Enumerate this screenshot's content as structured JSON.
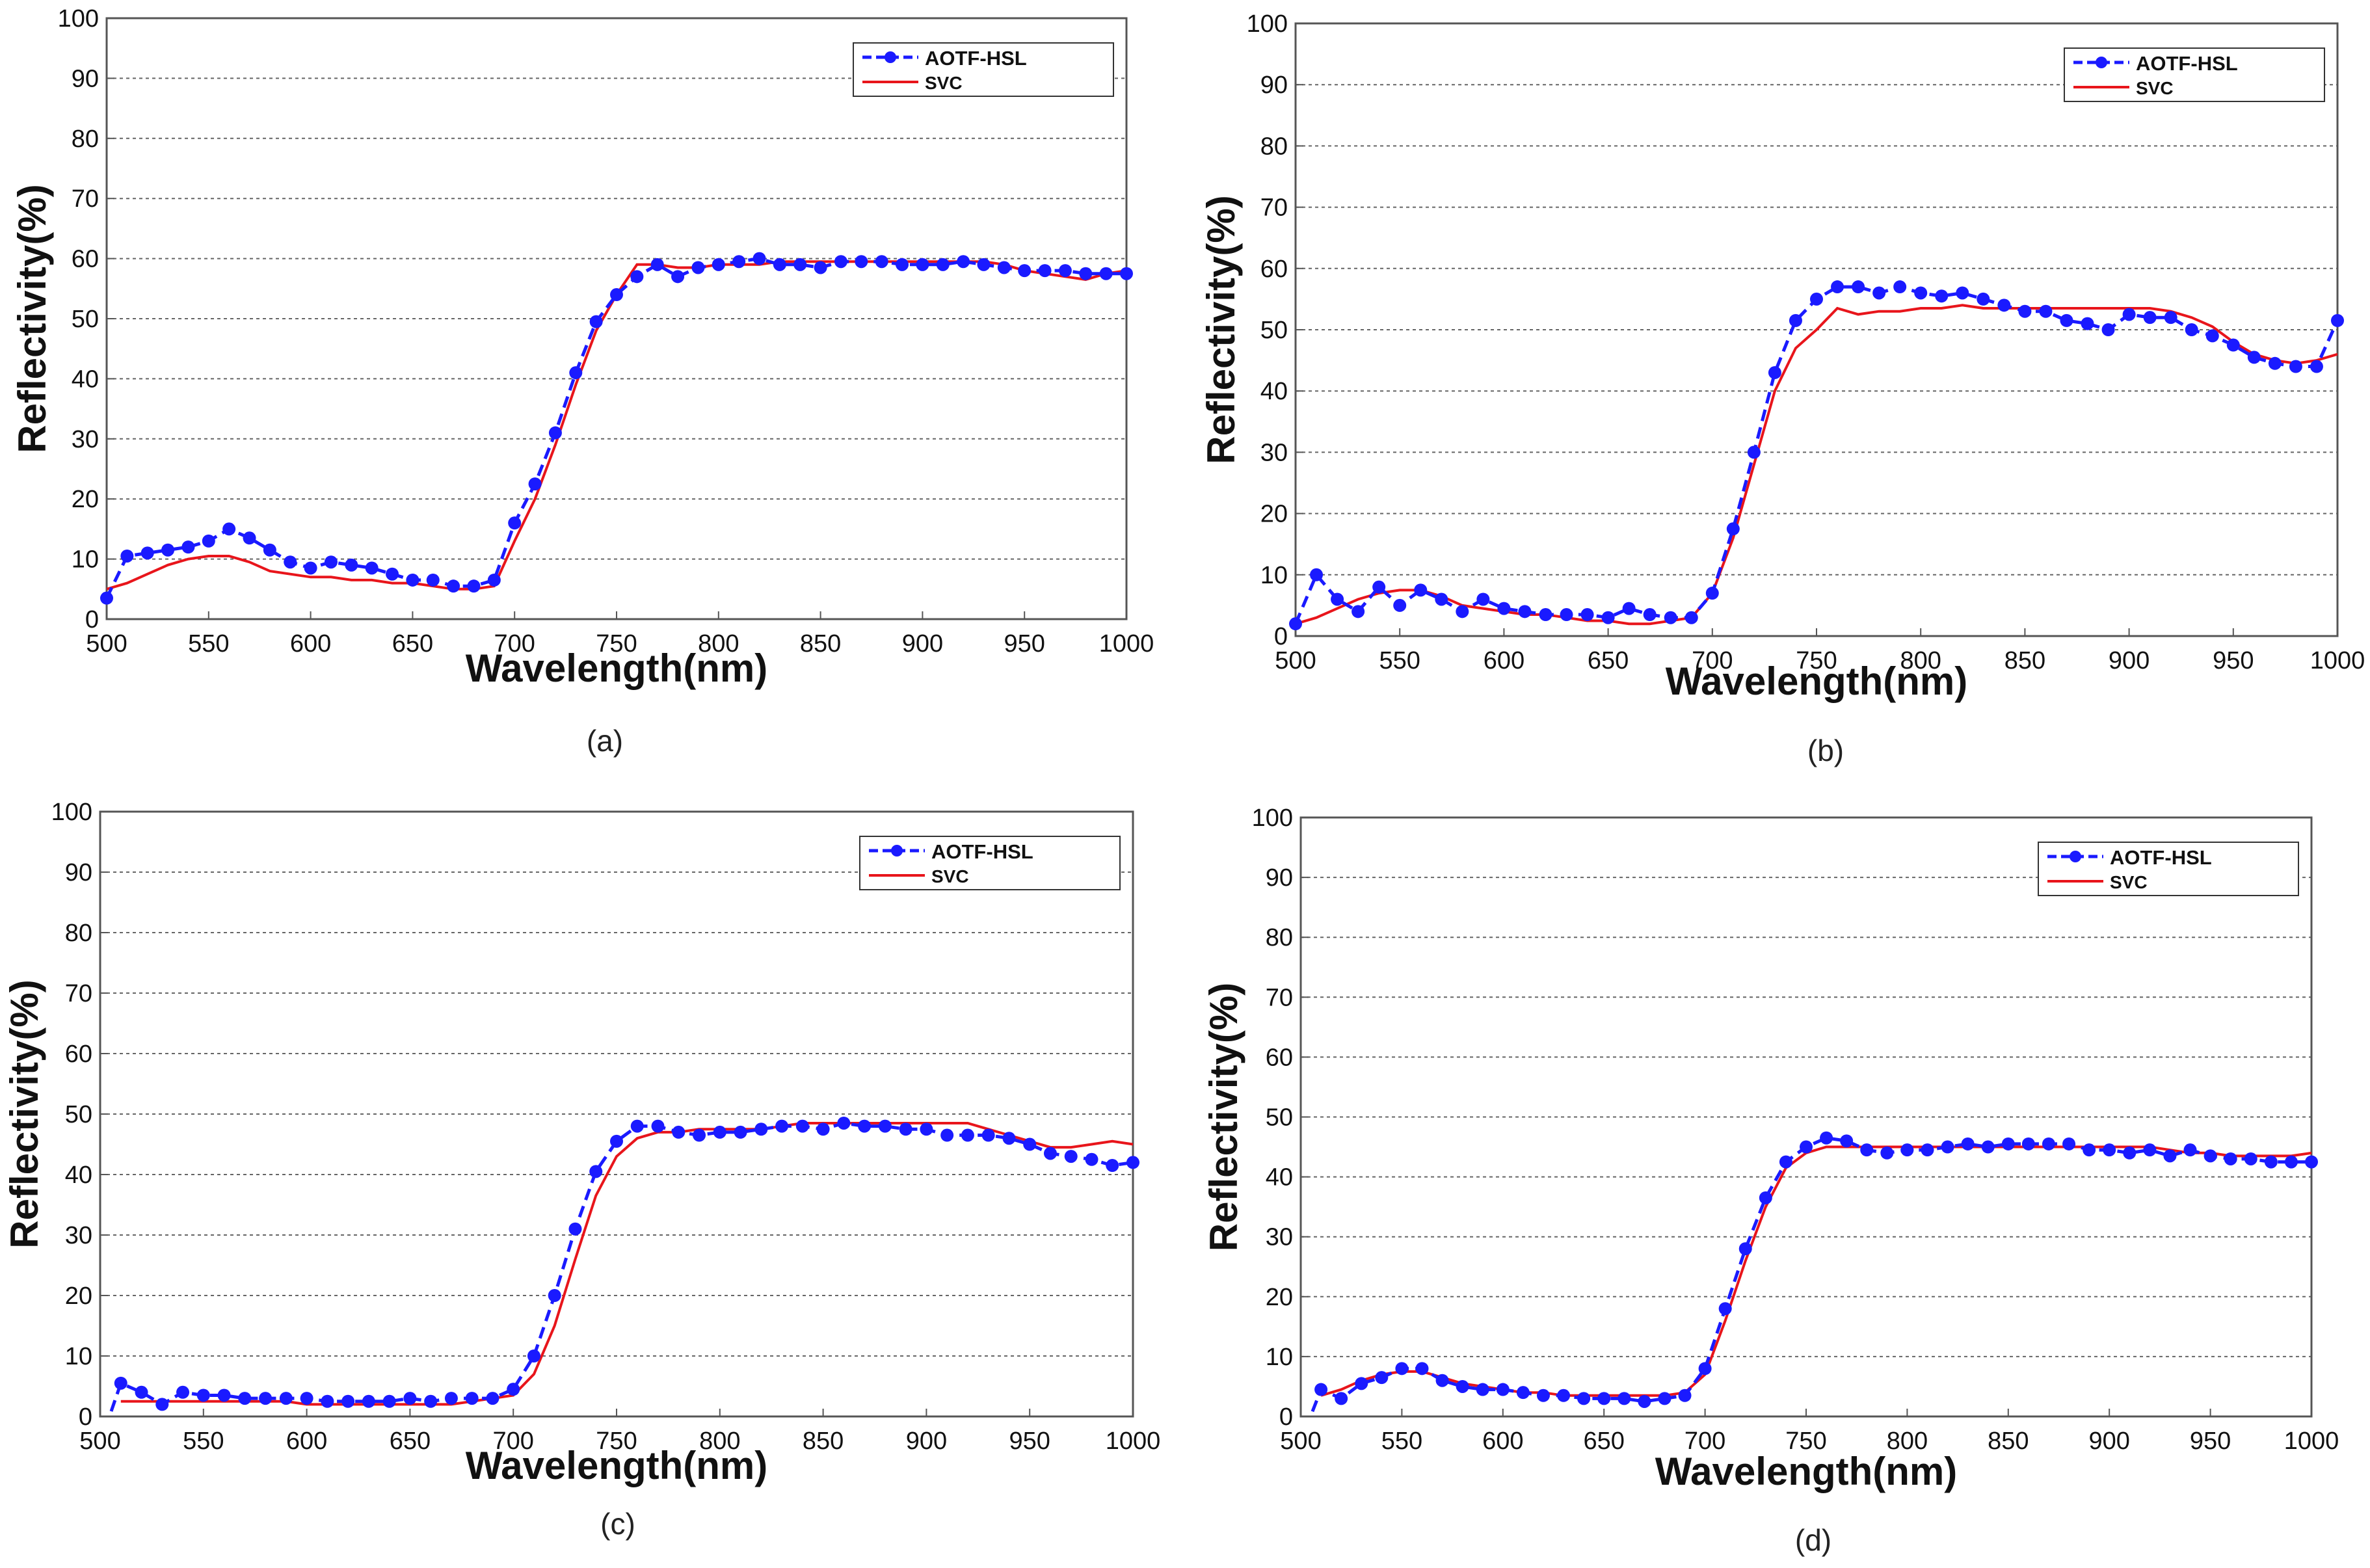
{
  "figure": {
    "legend_labels": [
      "AOTF-HSL",
      "SVC"
    ],
    "colors": {
      "aotf": "#1a1aff",
      "svc": "#e8151b",
      "grid": "#666666",
      "axis": "#555555"
    }
  },
  "chart_data": [
    {
      "type": "line",
      "caption": "(a)",
      "xlabel": "Wavelength(nm)",
      "ylabel": "Reflectivity(%)",
      "xlim": [
        500,
        1000
      ],
      "ylim": [
        0,
        100
      ],
      "xticks": [
        500,
        550,
        600,
        650,
        700,
        750,
        800,
        850,
        900,
        950,
        1000
      ],
      "yticks": [
        0,
        10,
        20,
        30,
        40,
        50,
        60,
        70,
        80,
        90,
        100
      ],
      "grid": true,
      "legend_position": "top-right",
      "x": [
        500,
        510,
        520,
        530,
        540,
        550,
        560,
        570,
        580,
        590,
        600,
        610,
        620,
        630,
        640,
        650,
        660,
        670,
        680,
        690,
        700,
        710,
        720,
        730,
        740,
        750,
        760,
        770,
        780,
        790,
        800,
        810,
        820,
        830,
        840,
        850,
        860,
        870,
        880,
        890,
        900,
        910,
        920,
        930,
        940,
        950,
        960,
        970,
        980,
        990,
        1000
      ],
      "series": [
        {
          "name": "AOTF-HSL",
          "style": "dashed-marker",
          "values": [
            3.5,
            10.5,
            11,
            11.5,
            12,
            13,
            15,
            13.5,
            11.5,
            9.5,
            8.5,
            9.5,
            9,
            8.5,
            7.5,
            6.5,
            6.5,
            5.5,
            5.5,
            6.5,
            16,
            22.5,
            31,
            41,
            49.5,
            54,
            57,
            59,
            57,
            58.5,
            59,
            59.5,
            60,
            59,
            59,
            58.5,
            59.5,
            59.5,
            59.5,
            59,
            59,
            59,
            59.5,
            59,
            58.5,
            58,
            58,
            58,
            57.5,
            57.5,
            57.5
          ]
        },
        {
          "name": "SVC",
          "style": "solid",
          "values": [
            5,
            6,
            7.5,
            9,
            10,
            10.5,
            10.5,
            9.5,
            8,
            7.5,
            7,
            7,
            6.5,
            6.5,
            6,
            6,
            5.5,
            5,
            5,
            5.5,
            13,
            20,
            29,
            39,
            48,
            54,
            59,
            59,
            58.5,
            58.5,
            59,
            59,
            59,
            59.5,
            59.5,
            59.5,
            59.5,
            59.5,
            59.5,
            59.5,
            59.5,
            59.5,
            59.5,
            59.5,
            59,
            58,
            57.5,
            57,
            56.5,
            57.5,
            58
          ]
        }
      ]
    },
    {
      "type": "line",
      "caption": "(b)",
      "xlabel": "Wavelength(nm)",
      "ylabel": "Reflectivity(%)",
      "xlim": [
        500,
        1000
      ],
      "ylim": [
        0,
        100
      ],
      "xticks": [
        500,
        550,
        600,
        650,
        700,
        750,
        800,
        850,
        900,
        950,
        1000
      ],
      "yticks": [
        0,
        10,
        20,
        30,
        40,
        50,
        60,
        70,
        80,
        90,
        100
      ],
      "grid": true,
      "legend_position": "top-right",
      "x": [
        500,
        510,
        520,
        530,
        540,
        550,
        560,
        570,
        580,
        590,
        600,
        610,
        620,
        630,
        640,
        650,
        660,
        670,
        680,
        690,
        700,
        710,
        720,
        730,
        740,
        750,
        760,
        770,
        780,
        790,
        800,
        810,
        820,
        830,
        840,
        850,
        860,
        870,
        880,
        890,
        900,
        910,
        920,
        930,
        940,
        950,
        960,
        970,
        980,
        990,
        1000
      ],
      "series": [
        {
          "name": "AOTF-HSL",
          "style": "dashed-marker",
          "values": [
            2,
            10,
            6,
            4,
            8,
            5,
            7.5,
            6,
            4,
            6,
            4.5,
            4,
            3.5,
            3.5,
            3.5,
            3,
            4.5,
            3.5,
            3,
            3,
            7,
            17.5,
            30,
            43,
            51.5,
            55,
            57,
            57,
            56,
            57,
            56,
            55.5,
            56,
            55,
            54,
            53,
            53,
            51.5,
            51,
            50,
            52.5,
            52,
            52,
            50,
            49,
            47.5,
            45.5,
            44.5,
            44,
            44,
            51.5
          ]
        },
        {
          "name": "SVC",
          "style": "solid",
          "values": [
            2,
            3,
            4.5,
            6,
            7,
            7.5,
            7.5,
            6.5,
            5,
            4.5,
            4,
            3.5,
            3.5,
            3,
            2.5,
            2.5,
            2,
            2,
            2.5,
            3,
            7,
            16,
            28,
            40,
            47,
            50,
            53.5,
            52.5,
            53,
            53,
            53.5,
            53.5,
            54,
            53.5,
            53.5,
            53.5,
            53.5,
            53.5,
            53.5,
            53.5,
            53.5,
            53.5,
            53,
            52,
            50.5,
            48,
            46,
            45,
            44.5,
            45,
            46
          ]
        }
      ]
    },
    {
      "type": "line",
      "caption": "(c)",
      "xlabel": "Wavelength(nm)",
      "ylabel": "Reflectivity(%)",
      "xlim": [
        500,
        1000
      ],
      "ylim": [
        0,
        100
      ],
      "xticks": [
        500,
        550,
        600,
        650,
        700,
        750,
        800,
        850,
        900,
        950,
        1000
      ],
      "yticks": [
        0,
        10,
        20,
        30,
        40,
        50,
        60,
        70,
        80,
        90,
        100
      ],
      "grid": true,
      "legend_position": "top-right",
      "x": [
        510,
        520,
        530,
        540,
        550,
        560,
        570,
        580,
        590,
        600,
        610,
        620,
        630,
        640,
        650,
        660,
        670,
        680,
        690,
        700,
        710,
        720,
        730,
        740,
        750,
        760,
        770,
        780,
        790,
        800,
        810,
        820,
        830,
        840,
        850,
        860,
        870,
        880,
        890,
        900,
        910,
        920,
        930,
        940,
        950,
        960,
        970,
        980,
        990,
        1000
      ],
      "series": [
        {
          "name": "AOTF-HSL",
          "style": "dashed-marker",
          "values": [
            5.5,
            4,
            2,
            4,
            3.5,
            3.5,
            3,
            3,
            3,
            3,
            2.5,
            2.5,
            2.5,
            2.5,
            3,
            2.5,
            3,
            3,
            3,
            4.5,
            10,
            20,
            31,
            40.5,
            45.5,
            48,
            48,
            47,
            46.5,
            47,
            47,
            47.5,
            48,
            48,
            47.5,
            48.5,
            48,
            48,
            47.5,
            47.5,
            46.5,
            46.5,
            46.5,
            46,
            45,
            43.5,
            43,
            42.5,
            41.5,
            42
          ]
        },
        {
          "name": "SVC",
          "style": "solid",
          "values": [
            2.5,
            2.5,
            2.5,
            2.5,
            2.5,
            2.5,
            2.5,
            2.5,
            2.5,
            2,
            2,
            2,
            2,
            2,
            2,
            2,
            2,
            2.5,
            3,
            3.5,
            7,
            15,
            26,
            36.5,
            43,
            46,
            47,
            47,
            47.5,
            47.5,
            47.5,
            47.5,
            48,
            48.5,
            48.5,
            48.5,
            48.5,
            48.5,
            48.5,
            48.5,
            48.5,
            48.5,
            47.5,
            46.5,
            45.5,
            44.5,
            44.5,
            45,
            45.5,
            45
          ]
        }
      ]
    },
    {
      "type": "line",
      "caption": "(d)",
      "xlabel": "Wavelength(nm)",
      "ylabel": "Reflectivity(%)",
      "xlim": [
        500,
        1000
      ],
      "ylim": [
        0,
        100
      ],
      "xticks": [
        500,
        550,
        600,
        650,
        700,
        750,
        800,
        850,
        900,
        950,
        1000
      ],
      "yticks": [
        0,
        10,
        20,
        30,
        40,
        50,
        60,
        70,
        80,
        90,
        100
      ],
      "grid": true,
      "legend_position": "top-right",
      "x": [
        510,
        520,
        530,
        540,
        550,
        560,
        570,
        580,
        590,
        600,
        610,
        620,
        630,
        640,
        650,
        660,
        670,
        680,
        690,
        700,
        710,
        720,
        730,
        740,
        750,
        760,
        770,
        780,
        790,
        800,
        810,
        820,
        830,
        840,
        850,
        860,
        870,
        880,
        890,
        900,
        910,
        920,
        930,
        940,
        950,
        960,
        970,
        980,
        990,
        1000
      ],
      "series": [
        {
          "name": "AOTF-HSL",
          "style": "dashed-marker",
          "values": [
            4.5,
            3,
            5.5,
            6.5,
            8,
            8,
            6,
            5,
            4.5,
            4.5,
            4,
            3.5,
            3.5,
            3,
            3,
            3,
            2.5,
            3,
            3.5,
            8,
            18,
            28,
            36.5,
            42.5,
            45,
            46.5,
            46,
            44.5,
            44,
            44.5,
            44.5,
            45,
            45.5,
            45,
            45.5,
            45.5,
            45.5,
            45.5,
            44.5,
            44.5,
            44,
            44.5,
            43.5,
            44.5,
            43.5,
            43,
            43,
            42.5,
            42.5,
            42.5
          ]
        },
        {
          "name": "SVC",
          "style": "solid",
          "values": [
            3.5,
            4.5,
            6,
            7,
            7.5,
            7.5,
            6.5,
            5.5,
            5,
            4.5,
            4,
            4,
            3.5,
            3.5,
            3.5,
            3.5,
            3.5,
            3.5,
            4,
            7,
            16,
            26,
            35,
            41.5,
            44,
            45,
            45,
            45,
            45,
            45,
            45,
            45,
            45,
            45,
            45,
            45,
            45,
            45,
            45,
            45,
            45,
            45,
            44.5,
            44,
            44,
            43.5,
            43.5,
            43.5,
            43.5,
            44
          ]
        }
      ]
    }
  ]
}
